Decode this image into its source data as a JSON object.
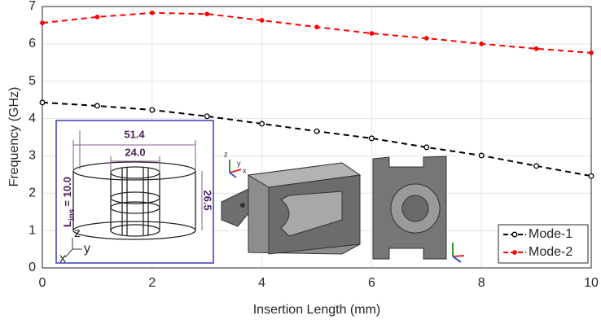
{
  "chart_data": {
    "type": "line",
    "x_label": "Insertion Length (mm)",
    "y_label": "Frequency (GHz)",
    "x": [
      0,
      1,
      2,
      3,
      4,
      5,
      6,
      7,
      8,
      9,
      10
    ],
    "series": [
      {
        "name": "Mode-1",
        "color": "#000000",
        "values": [
          4.43,
          4.34,
          4.23,
          4.06,
          3.86,
          3.66,
          3.47,
          3.23,
          3.01,
          2.73,
          2.46
        ]
      },
      {
        "name": "Mode-2",
        "color": "#ff0000",
        "values": [
          6.56,
          6.72,
          6.83,
          6.8,
          6.63,
          6.45,
          6.28,
          6.15,
          6.0,
          5.87,
          5.76
        ]
      }
    ],
    "xlim": [
      0,
      10
    ],
    "xticks": [
      0,
      2,
      4,
      6,
      8,
      10
    ],
    "ylim": [
      0,
      7
    ],
    "yticks": [
      0,
      1,
      2,
      3,
      4,
      5,
      6,
      7
    ],
    "grid": true,
    "legend": "lower right",
    "inset": {
      "dimensions": [
        "51.4",
        "24.0",
        "26.5"
      ],
      "length_symbol": "L",
      "length_subscript": "ins",
      "length_value": "= 10.0",
      "axes": [
        "z",
        "y",
        "x"
      ]
    },
    "model_axes": [
      "z",
      "y",
      "x"
    ]
  }
}
